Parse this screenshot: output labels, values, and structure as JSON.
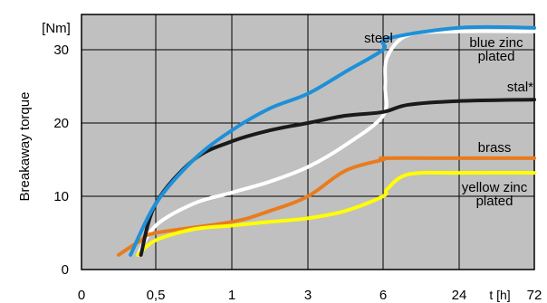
{
  "chart_data": {
    "type": "line",
    "ylabel": "Breakaway  torque",
    "y_unit": "[Nm]",
    "x_unit": "t [h]",
    "ylim": [
      0,
      33
    ],
    "y_ticks": [
      0,
      10,
      20,
      30
    ],
    "x_tick_labels": [
      "0",
      "0,5",
      "1",
      "3",
      "6",
      "24",
      "72"
    ],
    "grid": true,
    "background_color": "#c0c0c0",
    "series": [
      {
        "name": "steel",
        "color": "#1e90d8",
        "points": [
          [
            0.33,
            2
          ],
          [
            0.5,
            9
          ],
          [
            0.75,
            15
          ],
          [
            1,
            19
          ],
          [
            2,
            22
          ],
          [
            3,
            24
          ],
          [
            4.5,
            27
          ],
          [
            6,
            30
          ],
          [
            7,
            31.5
          ],
          [
            24,
            33
          ],
          [
            72,
            33
          ]
        ]
      },
      {
        "name": "blue zinc plated",
        "color": "#ffffff",
        "points": [
          [
            0.38,
            2
          ],
          [
            0.5,
            6
          ],
          [
            0.75,
            9
          ],
          [
            1,
            10.5
          ],
          [
            2,
            12
          ],
          [
            3,
            14
          ],
          [
            4.5,
            17
          ],
          [
            6,
            21
          ],
          [
            6.5,
            25
          ],
          [
            7,
            29
          ],
          [
            12,
            32
          ],
          [
            24,
            32.5
          ],
          [
            72,
            32.5
          ]
        ]
      },
      {
        "name": "stal*",
        "color": "#1a1a1a",
        "points": [
          [
            0.4,
            2
          ],
          [
            0.5,
            9
          ],
          [
            0.75,
            15
          ],
          [
            1,
            17.5
          ],
          [
            2,
            19
          ],
          [
            3,
            20
          ],
          [
            4.5,
            21
          ],
          [
            6,
            21.5
          ],
          [
            12,
            22.5
          ],
          [
            24,
            23
          ],
          [
            72,
            23.2
          ]
        ]
      },
      {
        "name": "brass",
        "color": "#e87c1e",
        "points": [
          [
            0.25,
            2
          ],
          [
            0.4,
            4
          ],
          [
            0.5,
            5
          ],
          [
            1,
            6.5
          ],
          [
            2,
            8
          ],
          [
            3,
            10
          ],
          [
            4.5,
            13.5
          ],
          [
            6,
            15
          ],
          [
            6.5,
            15.2
          ],
          [
            24,
            15.2
          ],
          [
            72,
            15.2
          ]
        ]
      },
      {
        "name": "yellow zinc plated",
        "color": "#ffff00",
        "points": [
          [
            0.38,
            2
          ],
          [
            0.5,
            4
          ],
          [
            0.75,
            5.5
          ],
          [
            1,
            6
          ],
          [
            2,
            6.5
          ],
          [
            3,
            7
          ],
          [
            4.5,
            8
          ],
          [
            6,
            10
          ],
          [
            7,
            11
          ],
          [
            12,
            13
          ],
          [
            24,
            13.2
          ],
          [
            72,
            13.2
          ]
        ]
      }
    ],
    "series_labels": [
      {
        "lines": [
          "steel"
        ]
      },
      {
        "lines": [
          "blue zinc",
          "plated"
        ]
      },
      {
        "lines": [
          "stal*"
        ]
      },
      {
        "lines": [
          "brass"
        ]
      },
      {
        "lines": [
          "yellow zinc",
          "plated"
        ]
      }
    ]
  }
}
